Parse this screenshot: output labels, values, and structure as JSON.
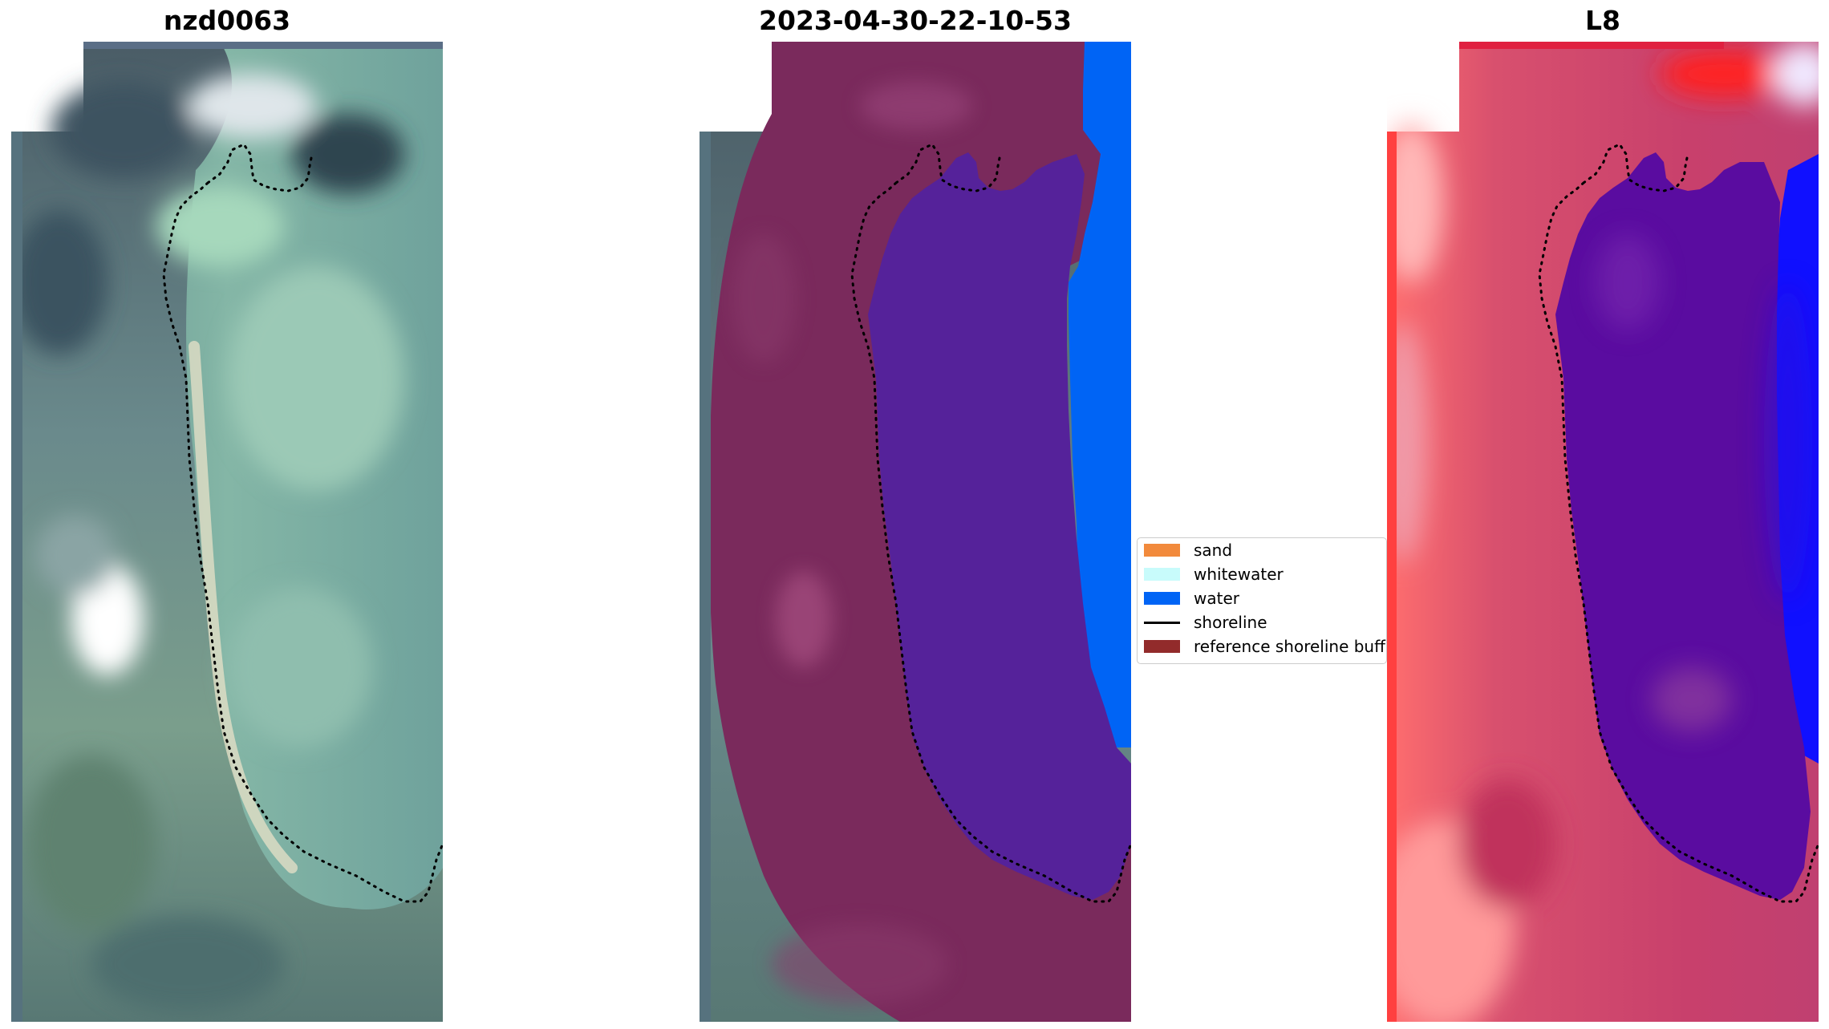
{
  "titles": {
    "rgb": "nzd0063",
    "classified": "2023-04-30-22-10-53",
    "index": "L8"
  },
  "legend": {
    "items": [
      {
        "label": "sand",
        "color": "#f28a3c",
        "kind": "patch"
      },
      {
        "label": "whitewater",
        "color": "#c8fbfb",
        "kind": "patch"
      },
      {
        "label": "water",
        "color": "#0064f5",
        "kind": "patch"
      },
      {
        "label": "shoreline",
        "color": "#000000",
        "kind": "line"
      },
      {
        "label": "reference shoreline buffer",
        "color": "#922b2b",
        "kind": "patch"
      }
    ]
  },
  "colors": {
    "rgb_water": "#7fb0a4",
    "rgb_land": "#4e6c78",
    "buffer_overlay": "#7a2a5c",
    "water_class": "#0064f5",
    "inner_class": "#55229a",
    "index_high": "#ff3030",
    "index_mid": "#c8406c",
    "index_low": "#1010ff",
    "index_water_mix": "#5a0ca0"
  }
}
